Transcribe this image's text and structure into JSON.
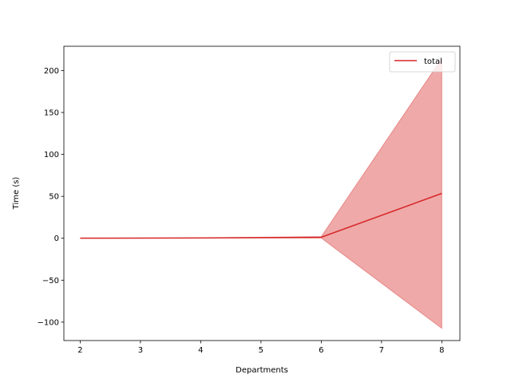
{
  "chart_data": {
    "type": "line",
    "xlabel": "Departments",
    "ylabel": "Time (s)",
    "xlim": [
      1.73,
      8.3
    ],
    "ylim": [
      -122,
      229
    ],
    "x_ticks": [
      2,
      3,
      4,
      5,
      6,
      7,
      8
    ],
    "y_ticks": [
      -100,
      -50,
      0,
      50,
      100,
      150,
      200
    ],
    "grid": false,
    "legend_position": "upper right",
    "series": [
      {
        "name": "total",
        "color": "#d62728",
        "x": [
          2,
          4,
          6,
          8
        ],
        "y": [
          0.1,
          0.3,
          1.2,
          53.5
        ],
        "band_lower": [
          0.1,
          0.2,
          0.2,
          -107.5
        ],
        "band_upper": [
          0.1,
          0.4,
          2.0,
          214.5
        ],
        "band_color": "#d62728",
        "band_opacity": 0.4
      }
    ]
  }
}
